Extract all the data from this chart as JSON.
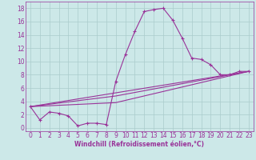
{
  "title": "",
  "xlabel": "Windchill (Refroidissement éolien,°C)",
  "ylabel": "",
  "bg_color": "#cce8e8",
  "grid_color": "#aacccc",
  "line_color": "#993399",
  "spine_color": "#993399",
  "xmin": -0.5,
  "xmax": 23.5,
  "ymin": -0.5,
  "ymax": 19,
  "yticks": [
    0,
    2,
    4,
    6,
    8,
    10,
    12,
    14,
    16,
    18
  ],
  "xticks": [
    0,
    1,
    2,
    3,
    4,
    5,
    6,
    7,
    8,
    9,
    10,
    11,
    12,
    13,
    14,
    15,
    16,
    17,
    18,
    19,
    20,
    21,
    22,
    23
  ],
  "line1_x": [
    0,
    1,
    2,
    3,
    4,
    5,
    6,
    7,
    8,
    9,
    10,
    11,
    12,
    13,
    14,
    15,
    16,
    17,
    18,
    19,
    20,
    21,
    22,
    23
  ],
  "line1_y": [
    3.2,
    1.2,
    2.4,
    2.2,
    1.8,
    0.3,
    0.7,
    0.7,
    0.5,
    7.0,
    11.0,
    14.5,
    17.5,
    17.8,
    18.0,
    16.2,
    13.5,
    10.5,
    10.3,
    9.5,
    8.0,
    8.0,
    8.5,
    8.5
  ],
  "line2_x": [
    0,
    23
  ],
  "line2_y": [
    3.2,
    8.5
  ],
  "line3_x": [
    0,
    9,
    23
  ],
  "line3_y": [
    3.2,
    4.8,
    8.5
  ],
  "line4_x": [
    0,
    9,
    23
  ],
  "line4_y": [
    3.2,
    3.8,
    8.5
  ],
  "tick_fontsize": 5.5,
  "xlabel_fontsize": 5.5,
  "lw": 0.8
}
